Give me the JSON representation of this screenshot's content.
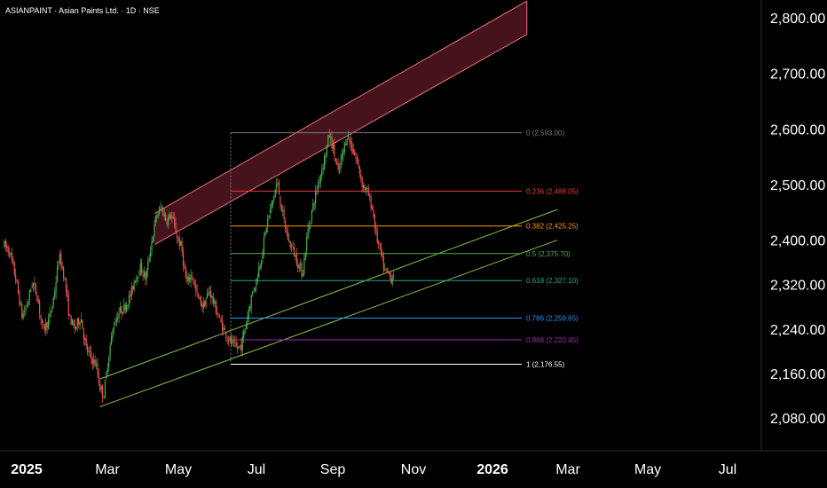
{
  "header": {
    "title": "ASIANPAINT · Asian Paints Ltd. · 1D · NSE"
  },
  "colors": {
    "background": "#000000",
    "up": "#4caf50",
    "down": "#ef5350",
    "channel_red": "#e57373",
    "channel_fill": "#5d1a25",
    "channel_green": "#8bc34a"
  },
  "chart_data": {
    "type": "candlestick",
    "x_axis": {
      "labels": [
        "2025",
        "Mar",
        "May",
        "Jul",
        "Sep",
        "Nov",
        "2026",
        "Mar",
        "May",
        "Jul"
      ]
    },
    "y_axis": {
      "labels": [
        "2,800.00",
        "2,700.00",
        "2,600.00",
        "2,500.00",
        "2,400.00",
        "2,320.00",
        "2,240.00",
        "2,160.00",
        "2,080.00"
      ]
    },
    "fib_levels": [
      {
        "ratio": "0",
        "value": 2593.0,
        "label": "0 (2,593.00)",
        "color": "#787b86"
      },
      {
        "ratio": "0.236",
        "value": 2488.05,
        "label": "0.236 (2,488.05)",
        "color": "#f23645"
      },
      {
        "ratio": "0.382",
        "value": 2425.25,
        "label": "0.382 (2,425.25)",
        "color": "#ff9800"
      },
      {
        "ratio": "0.5",
        "value": 2375.7,
        "label": "0.5 (2,375.70)",
        "color": "#4caf50"
      },
      {
        "ratio": "0.618",
        "value": 2327.1,
        "label": "0.618 (2,327.10)",
        "color": "#26a69a"
      },
      {
        "ratio": "0.786",
        "value": 2259.65,
        "label": "0.786 (2,259.65)",
        "color": "#2196f3"
      },
      {
        "ratio": "0.886",
        "value": 2220.45,
        "label": "0.886 (2,220.45)",
        "color": "#9c27b0"
      },
      {
        "ratio": "1",
        "value": 2176.55,
        "label": "1 (2,176.55)",
        "color": "#ffffff"
      }
    ],
    "price_path": [
      [
        "2024-12-18",
        2390
      ],
      [
        "2024-12-22",
        2380
      ],
      [
        "2024-12-27",
        2330
      ],
      [
        "2025-01-01",
        2262
      ],
      [
        "2025-01-05",
        2285
      ],
      [
        "2025-01-09",
        2325
      ],
      [
        "2025-01-13",
        2298
      ],
      [
        "2025-01-17",
        2238
      ],
      [
        "2025-01-22",
        2255
      ],
      [
        "2025-01-26",
        2300
      ],
      [
        "2025-01-30",
        2372
      ],
      [
        "2025-02-03",
        2335
      ],
      [
        "2025-02-07",
        2262
      ],
      [
        "2025-02-11",
        2240
      ],
      [
        "2025-02-16",
        2262
      ],
      [
        "2025-02-20",
        2205
      ],
      [
        "2025-02-25",
        2185
      ],
      [
        "2025-02-28",
        2175
      ],
      [
        "2025-03-03",
        2135
      ],
      [
        "2025-03-06",
        2120
      ],
      [
        "2025-03-10",
        2195
      ],
      [
        "2025-03-14",
        2250
      ],
      [
        "2025-03-18",
        2270
      ],
      [
        "2025-03-22",
        2278
      ],
      [
        "2025-03-27",
        2300
      ],
      [
        "2025-03-31",
        2335
      ],
      [
        "2025-04-04",
        2350
      ],
      [
        "2025-04-08",
        2330
      ],
      [
        "2025-04-12",
        2390
      ],
      [
        "2025-04-16",
        2440
      ],
      [
        "2025-04-20",
        2460
      ],
      [
        "2025-04-24",
        2435
      ],
      [
        "2025-04-28",
        2445
      ],
      [
        "2025-05-02",
        2410
      ],
      [
        "2025-05-06",
        2385
      ],
      [
        "2025-05-10",
        2320
      ],
      [
        "2025-05-14",
        2340
      ],
      [
        "2025-05-18",
        2300
      ],
      [
        "2025-05-23",
        2280
      ],
      [
        "2025-05-28",
        2310
      ],
      [
        "2025-06-02",
        2275
      ],
      [
        "2025-06-06",
        2250
      ],
      [
        "2025-06-10",
        2230
      ],
      [
        "2025-06-14",
        2215
      ],
      [
        "2025-06-18",
        2205
      ],
      [
        "2025-06-22",
        2210
      ],
      [
        "2025-06-26",
        2255
      ],
      [
        "2025-06-30",
        2300
      ],
      [
        "2025-07-04",
        2330
      ],
      [
        "2025-07-08",
        2375
      ],
      [
        "2025-07-12",
        2430
      ],
      [
        "2025-07-16",
        2465
      ],
      [
        "2025-07-20",
        2505
      ],
      [
        "2025-07-24",
        2450
      ],
      [
        "2025-07-28",
        2405
      ],
      [
        "2025-08-01",
        2385
      ],
      [
        "2025-08-05",
        2360
      ],
      [
        "2025-08-09",
        2340
      ],
      [
        "2025-08-13",
        2415
      ],
      [
        "2025-08-17",
        2460
      ],
      [
        "2025-08-21",
        2500
      ],
      [
        "2025-08-26",
        2545
      ],
      [
        "2025-08-30",
        2590
      ],
      [
        "2025-09-02",
        2565
      ],
      [
        "2025-09-06",
        2520
      ],
      [
        "2025-09-10",
        2560
      ],
      [
        "2025-09-13",
        2590
      ],
      [
        "2025-09-17",
        2565
      ],
      [
        "2025-09-21",
        2540
      ],
      [
        "2025-09-25",
        2500
      ],
      [
        "2025-09-29",
        2485
      ],
      [
        "2025-10-03",
        2455
      ],
      [
        "2025-10-06",
        2405
      ],
      [
        "2025-10-09",
        2380
      ],
      [
        "2025-10-12",
        2345
      ],
      [
        "2025-10-15",
        2340
      ],
      [
        "2025-10-18",
        2330
      ],
      [
        "2025-10-20",
        2345
      ]
    ],
    "annotations": [
      {
        "type": "up-channel",
        "name": "red rising channel",
        "upper": [
          [
            "2025-04-15",
            2448
          ],
          [
            "2026-02-01",
            2830
          ]
        ],
        "lower": [
          [
            "2025-04-15",
            2392
          ],
          [
            "2026-02-01",
            2770
          ]
        ]
      },
      {
        "type": "up-channel",
        "name": "green rising channel",
        "upper": [
          [
            "2025-03-03",
            2150
          ],
          [
            "2026-02-25",
            2455
          ]
        ],
        "lower": [
          [
            "2025-03-03",
            2100
          ],
          [
            "2026-02-25",
            2400
          ]
        ]
      }
    ]
  }
}
